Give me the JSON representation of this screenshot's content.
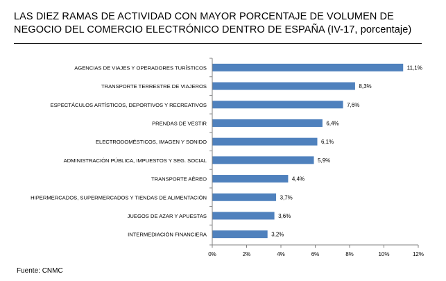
{
  "title": "LAS DIEZ RAMAS DE ACTIVIDAD CON MAYOR PORCENTAJE DE VOLUMEN DE NEGOCIO DEL COMERCIO ELECTRÓNICO DENTRO DE ESPAÑA (IV-17, porcentaje)",
  "source": "Fuente: CNMC",
  "colors": {
    "bar": "#4f81bd",
    "axis": "#808080"
  },
  "chart_data": {
    "type": "bar",
    "orientation": "horizontal",
    "title": "LAS DIEZ RAMAS DE ACTIVIDAD CON MAYOR PORCENTAJE DE VOLUMEN DE NEGOCIO DEL COMERCIO ELECTRÓNICO DENTRO DE ESPAÑA (IV-17, porcentaje)",
    "xlabel": "",
    "ylabel": "",
    "categories": [
      "AGENCIAS DE VIAJES Y OPERADORES TURÍSTICOS",
      "TRANSPORTE TERRESTRE DE VIAJEROS",
      "ESPECTÁCULOS ARTÍSTICOS, DEPORTIVOS Y RECREATIVOS",
      "PRENDAS DE VESTIR",
      "ELECTRODOMÉSTICOS, IMAGEN Y SONIDO",
      "ADMINISTRACIÓN PÚBLICA, IMPUESTOS Y SEG. SOCIAL",
      "TRANSPORTE AÉREO",
      "HIPERMERCADOS, SUPERMERCADOS Y TIENDAS DE ALIMENTACIÓN",
      "JUEGOS DE AZAR Y APUESTAS",
      "INTERMEDIACIÓN FINANCIERA"
    ],
    "values": [
      11.1,
      8.3,
      7.6,
      6.4,
      6.1,
      5.9,
      4.4,
      3.7,
      3.6,
      3.2
    ],
    "value_labels": [
      "11,1%",
      "8,3%",
      "7,6%",
      "6,4%",
      "6,1%",
      "5,9%",
      "4,4%",
      "3,7%",
      "3,6%",
      "3,2%"
    ],
    "xlim": [
      0,
      12
    ],
    "xticks": [
      0,
      2,
      4,
      6,
      8,
      10,
      12
    ],
    "xtick_labels": [
      "0%",
      "2%",
      "4%",
      "6%",
      "8%",
      "10%",
      "12%"
    ],
    "grid": false,
    "legend": "none"
  }
}
